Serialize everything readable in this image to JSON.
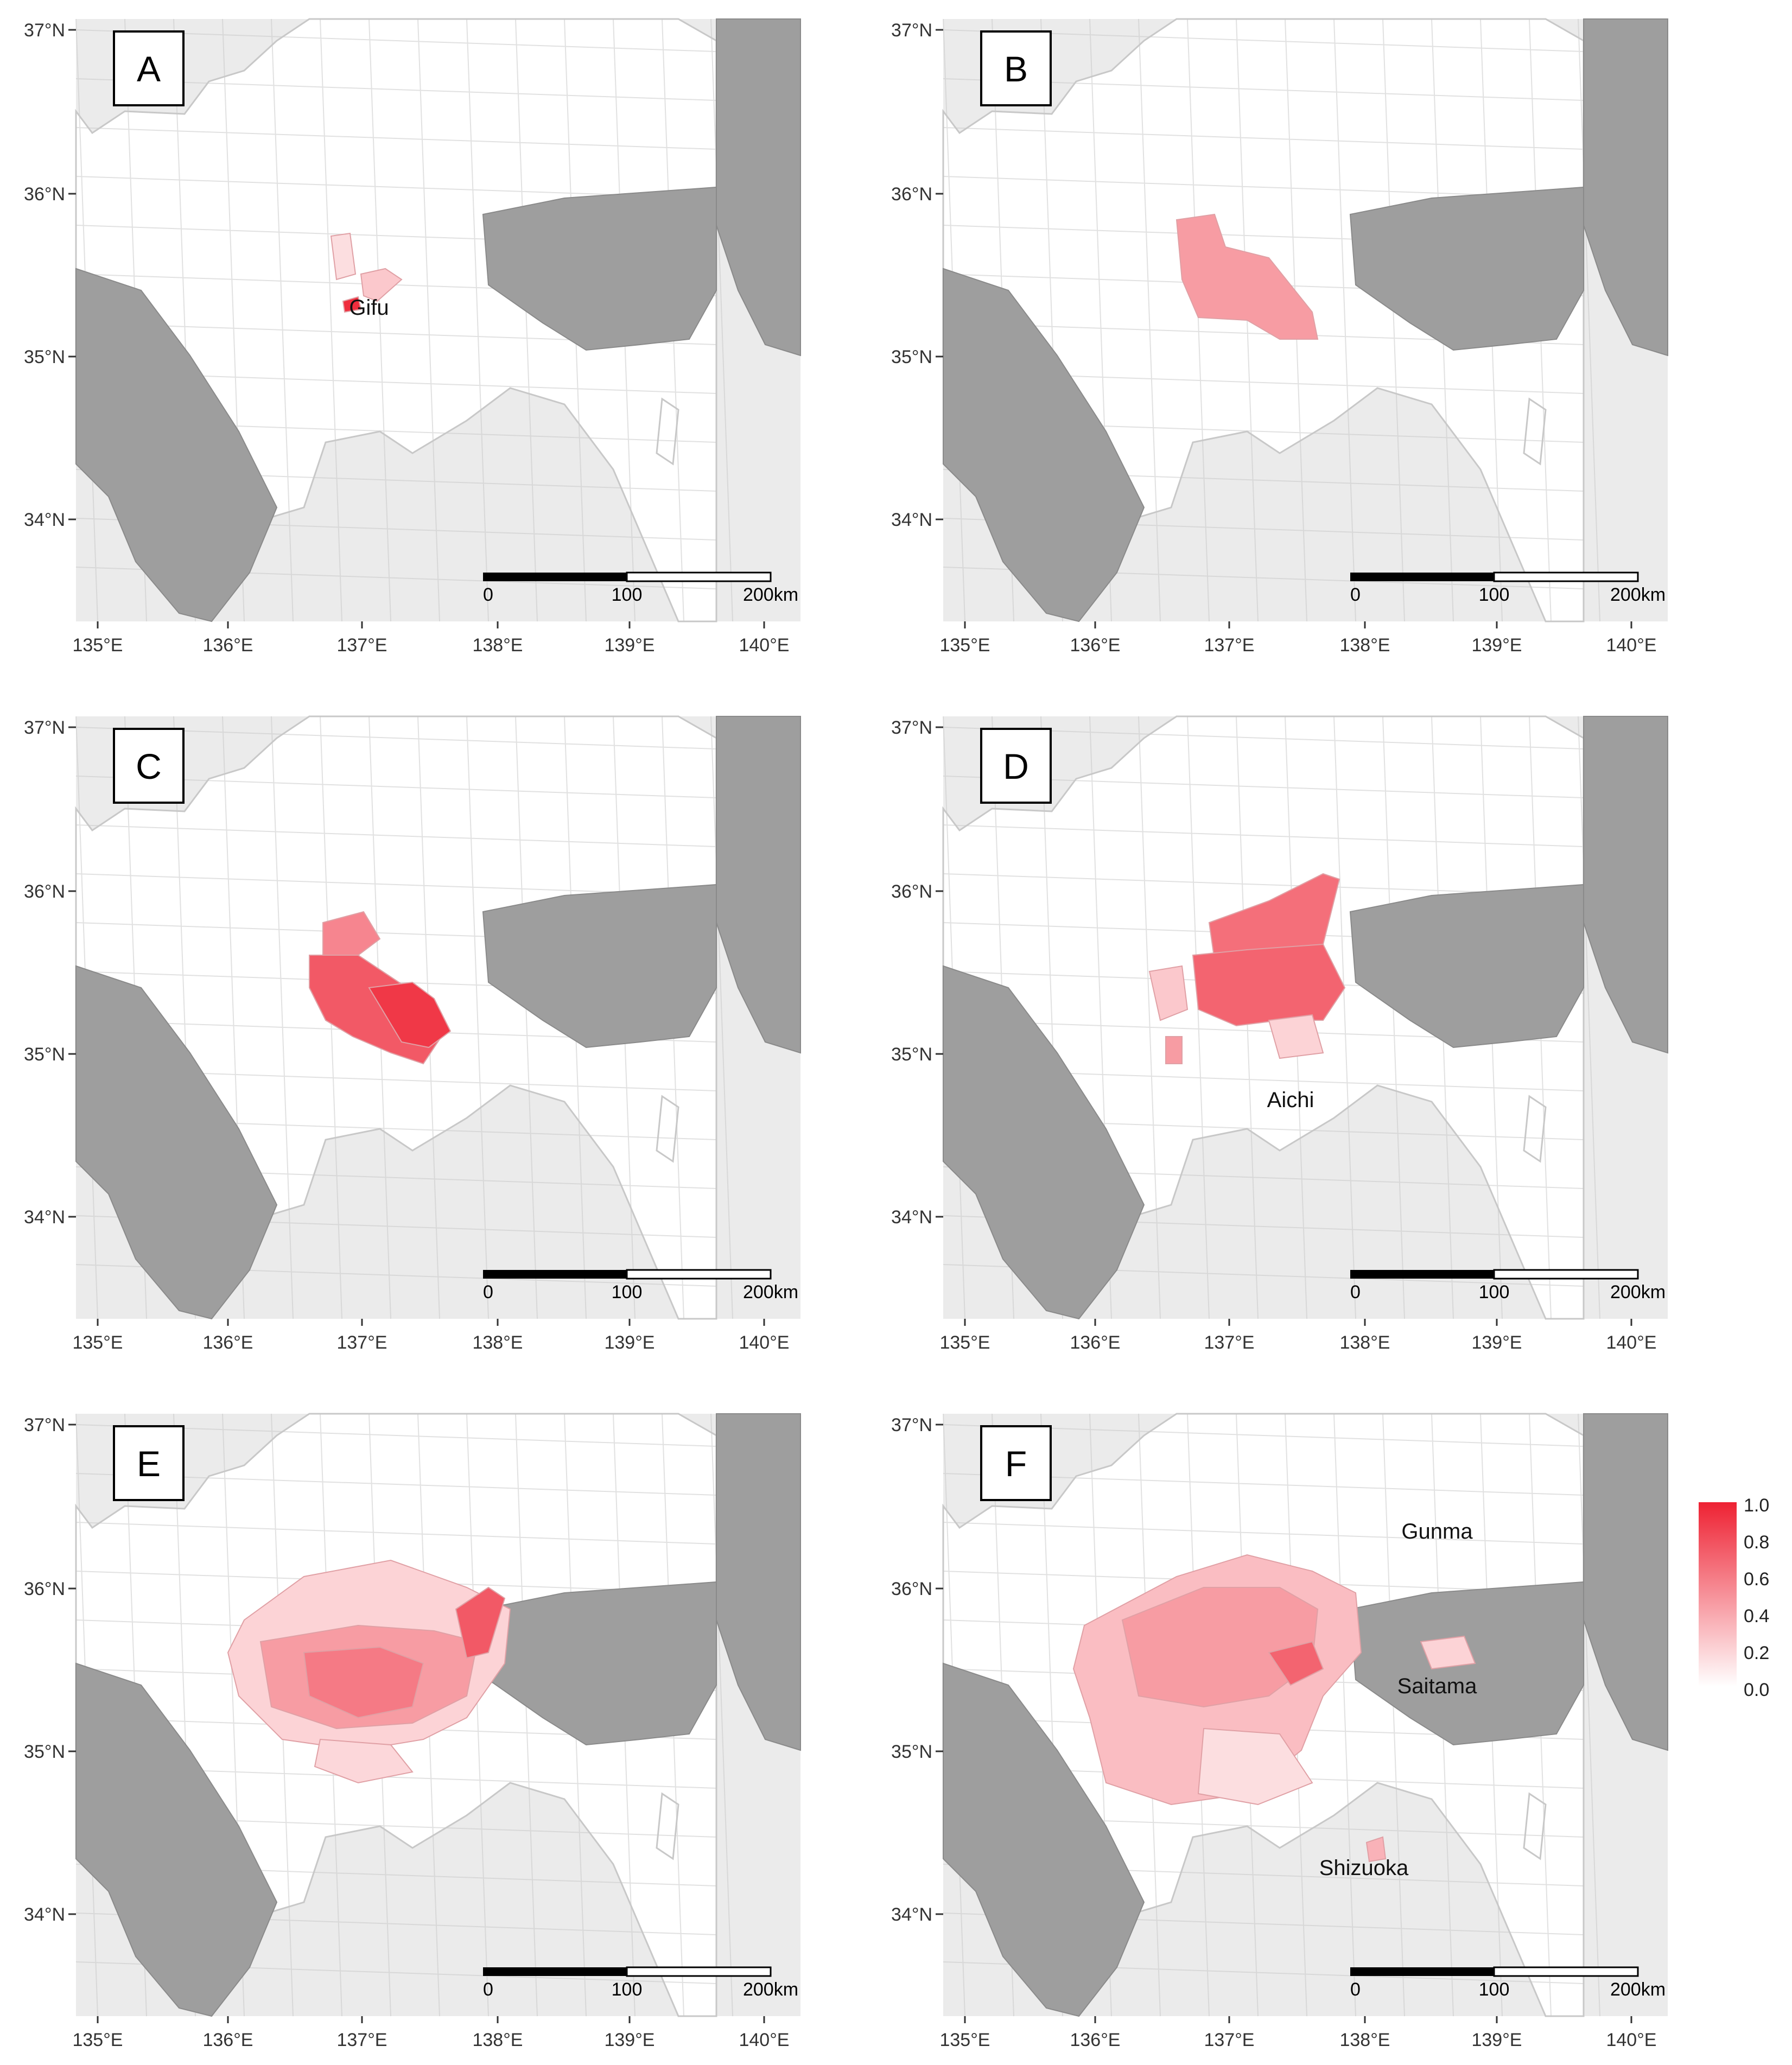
{
  "figure": {
    "x_ticks": [
      "135°E",
      "136°E",
      "137°E",
      "138°E",
      "139°E",
      "140°E"
    ],
    "y_ticks": [
      "37°N",
      "36°N",
      "35°N",
      "34°N"
    ],
    "scale_bar": {
      "labels": [
        "0",
        "100",
        "200km"
      ]
    },
    "colors": {
      "panel_background": "#ebebeb",
      "land": "#ffffff",
      "other_region": "#9e9e9e",
      "boundary": "#c8c8c8",
      "fill_high": "#ee2233"
    },
    "panels": [
      {
        "letter": "A",
        "place_labels": [
          "Gifu"
        ],
        "areas": [
          {
            "name": "core",
            "intensity": 0.95
          },
          {
            "name": "north",
            "intensity": 0.15
          },
          {
            "name": "east",
            "intensity": 0.25
          }
        ]
      },
      {
        "letter": "B",
        "place_labels": [],
        "areas": [
          {
            "name": "cluster",
            "intensity": 0.45
          }
        ]
      },
      {
        "letter": "C",
        "place_labels": [],
        "areas": [
          {
            "name": "outer",
            "intensity": 0.55
          },
          {
            "name": "inner",
            "intensity": 0.75
          },
          {
            "name": "core",
            "intensity": 0.9
          }
        ]
      },
      {
        "letter": "D",
        "place_labels": [
          "Aichi"
        ],
        "areas": [
          {
            "name": "north",
            "intensity": 0.65
          },
          {
            "name": "center",
            "intensity": 0.7
          },
          {
            "name": "west",
            "intensity": 0.25
          },
          {
            "name": "south",
            "intensity": 0.2
          },
          {
            "name": "spot",
            "intensity": 0.45
          }
        ]
      },
      {
        "letter": "E",
        "place_labels": [],
        "areas": [
          {
            "name": "outer",
            "intensity": 0.2
          },
          {
            "name": "middle",
            "intensity": 0.45
          },
          {
            "name": "core",
            "intensity": 0.6
          },
          {
            "name": "east-strip",
            "intensity": 0.75
          },
          {
            "name": "south",
            "intensity": 0.18
          }
        ]
      },
      {
        "letter": "F",
        "place_labels": [
          "Gunma",
          "Saitama",
          "Shizuoka"
        ],
        "areas": [
          {
            "name": "outer",
            "intensity": 0.3
          },
          {
            "name": "middle",
            "intensity": 0.45
          },
          {
            "name": "east-patch",
            "intensity": 0.7
          },
          {
            "name": "south",
            "intensity": 0.15
          },
          {
            "name": "saitama-patch",
            "intensity": 0.2
          },
          {
            "name": "shizuoka-spot",
            "intensity": 0.35
          }
        ]
      }
    ],
    "legend": {
      "ticks": [
        "1.0",
        "0.8",
        "0.6",
        "0.4",
        "0.2",
        "0.0"
      ],
      "min": 0.0,
      "max": 1.0
    }
  }
}
